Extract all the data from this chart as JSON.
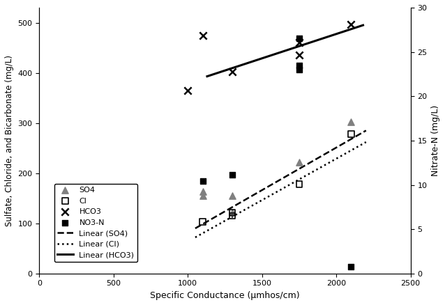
{
  "SO4_x": [
    1100,
    1100,
    1300,
    1300,
    1750,
    2100
  ],
  "SO4_y": [
    155,
    163,
    155,
    122,
    222,
    302
  ],
  "Cl_x": [
    1100,
    1300,
    1300,
    1750,
    2100
  ],
  "Cl_y": [
    103,
    115,
    122,
    178,
    278
  ],
  "HCO3_x": [
    1000,
    1100,
    1300,
    1750,
    1750,
    2100
  ],
  "HCO3_y": [
    365,
    475,
    402,
    435,
    460,
    497
  ],
  "NO3N_x": [
    1100,
    1300,
    1750,
    1750,
    1750,
    2100
  ],
  "NO3N_y": [
    10.4,
    11.1,
    23.0,
    23.5,
    26.5,
    0.8
  ],
  "SO4_line_x": [
    1050,
    2200
  ],
  "SO4_line_y": [
    90,
    285
  ],
  "Cl_line_x": [
    1050,
    2200
  ],
  "Cl_line_y": [
    72,
    262
  ],
  "HCO3_line_x": [
    1130,
    2180
  ],
  "HCO3_line_y": [
    393,
    495
  ],
  "xlim": [
    0,
    2500
  ],
  "ylim_left": [
    0,
    530
  ],
  "ylim_right": [
    0,
    30
  ],
  "xlabel": "Specific Conductance (μmhos/cm)",
  "ylabel_left": "Sulfate, Chloride, and Bicarbonate (mg/L)",
  "ylabel_right": "Nitrate-N (mg/L)",
  "background_color": "#ffffff"
}
